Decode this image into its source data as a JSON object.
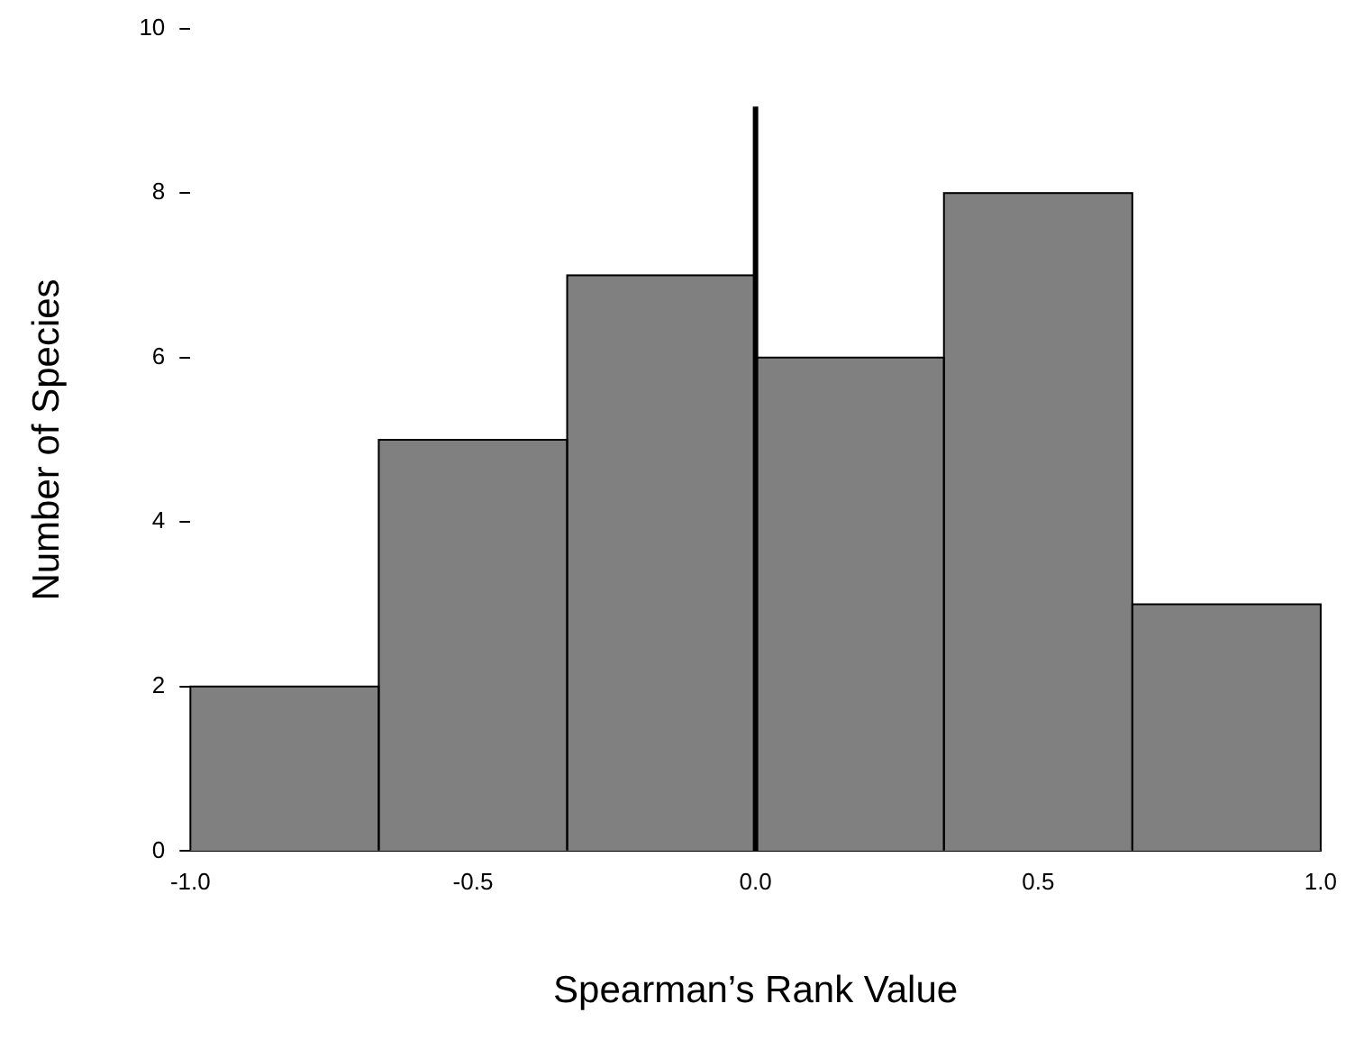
{
  "chart_data": {
    "type": "histogram",
    "xlabel": "Spearman’s Rank Value",
    "ylabel": "Number of Species",
    "bins": [
      -1,
      -0.6667,
      -0.3333,
      0,
      0.3333,
      0.6667,
      1
    ],
    "values": [
      2,
      5,
      7,
      6,
      8,
      3
    ],
    "color": "#808080",
    "xlim": [
      -1,
      1
    ],
    "xticks": [
      {
        "value": -1,
        "label": "-1.0"
      },
      {
        "value": -0.5,
        "label": "-0.5"
      },
      {
        "value": 0,
        "label": "0.0"
      },
      {
        "value": 0.5,
        "label": "0.5"
      },
      {
        "value": 1,
        "label": "1.0"
      }
    ],
    "ylim": [
      0,
      10
    ],
    "yticks": [
      0,
      2,
      4,
      6,
      8,
      10
    ],
    "ref_lines": [
      {
        "axis": "x",
        "value": 0,
        "color": "#000000"
      }
    ],
    "grid": false,
    "legend": false
  }
}
